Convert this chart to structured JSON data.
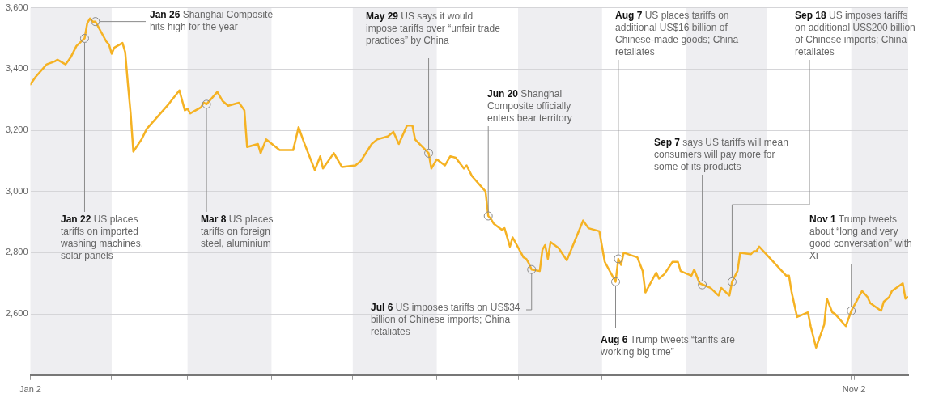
{
  "chart_data": {
    "type": "line",
    "x": [
      "--01-02",
      "--01-04",
      "--01-08",
      "--01-11",
      "--01-12",
      "--01-15",
      "--01-17",
      "--01-19",
      "--01-22",
      "--01-23",
      "--01-24",
      "--01-25",
      "--01-26",
      "--01-30",
      "--01-31",
      "--02-01",
      "--02-02",
      "--02-05",
      "--02-06",
      "--02-07",
      "--02-08",
      "--02-09",
      "--02-12",
      "--02-14",
      "--02-22",
      "--02-26",
      "--02-28",
      "--03-01",
      "--03-02",
      "--03-06",
      "--03-07",
      "--03-08",
      "--03-12",
      "--03-14",
      "--03-16",
      "--03-20",
      "--03-22",
      "--03-23",
      "--03-27",
      "--03-28",
      "--03-30",
      "--04-04",
      "--04-09",
      "--04-11",
      "--04-13",
      "--04-17",
      "--04-19",
      "--04-20",
      "--04-24",
      "--04-27",
      "--05-02",
      "--05-04",
      "--05-08",
      "--05-10",
      "--05-14",
      "--05-16",
      "--05-18",
      "--05-21",
      "--05-23",
      "--05-24",
      "--05-29",
      "--05-30",
      "--05-31",
      "--06-01",
      "--06-04",
      "--06-06",
      "--06-08",
      "--06-11",
      "--06-12",
      "--06-14",
      "--06-19",
      "--06-20",
      "--06-21",
      "--06-22",
      "--06-25",
      "--06-26",
      "--06-27",
      "--06-28",
      "--06-29",
      "--07-03",
      "--07-04",
      "--07-05",
      "--07-06",
      "--07-09",
      "--07-10",
      "--07-11",
      "--07-12",
      "--07-13",
      "--07-16",
      "--07-19",
      "--07-25",
      "--07-27",
      "--07-31",
      "--08-02",
      "--08-06",
      "--08-07",
      "--08-08",
      "--08-09",
      "--08-14",
      "--08-16",
      "--08-17",
      "--08-21",
      "--08-22",
      "--08-24",
      "--08-27",
      "--08-29",
      "--08-30",
      "--09-03",
      "--09-04",
      "--09-06",
      "--09-10",
      "--09-13",
      "--09-14",
      "--09-17",
      "--09-18",
      "--09-20",
      "--09-21",
      "--09-25",
      "--09-26",
      "--09-27",
      "--09-28",
      "--10-08",
      "--10-09",
      "--10-10",
      "--10-12",
      "--10-16",
      "--10-17",
      "--10-19",
      "--10-22",
      "--10-23",
      "--10-25",
      "--10-26",
      "--10-30",
      "--11-01",
      "--11-05",
      "--11-07",
      "--11-08",
      "--11-12",
      "--11-13",
      "--11-15",
      "--11-16",
      "--11-20",
      "--11-21",
      "--11-22"
    ],
    "values": [
      3350,
      3375,
      3415,
      3425,
      3430,
      3415,
      3440,
      3475,
      3500,
      3550,
      3565,
      3555,
      3555,
      3490,
      3480,
      3450,
      3470,
      3485,
      3455,
      3350,
      3255,
      3130,
      3170,
      3205,
      3285,
      3330,
      3265,
      3270,
      3255,
      3275,
      3290,
      3285,
      3325,
      3295,
      3280,
      3290,
      3265,
      3145,
      3155,
      3125,
      3170,
      3135,
      3135,
      3210,
      3160,
      3070,
      3115,
      3075,
      3125,
      3080,
      3085,
      3100,
      3155,
      3170,
      3180,
      3195,
      3155,
      3215,
      3215,
      3170,
      3125,
      3075,
      3090,
      3105,
      3085,
      3115,
      3110,
      3075,
      3085,
      3050,
      3000,
      2920,
      2910,
      2895,
      2875,
      2880,
      2850,
      2820,
      2850,
      2785,
      2780,
      2765,
      2745,
      2740,
      2810,
      2825,
      2780,
      2835,
      2815,
      2775,
      2905,
      2880,
      2870,
      2770,
      2705,
      2780,
      2760,
      2800,
      2785,
      2740,
      2670,
      2735,
      2715,
      2730,
      2770,
      2770,
      2740,
      2725,
      2745,
      2700,
      2685,
      2660,
      2685,
      2660,
      2705,
      2740,
      2800,
      2795,
      2805,
      2805,
      2820,
      2725,
      2725,
      2670,
      2590,
      2605,
      2560,
      2490,
      2565,
      2650,
      2605,
      2600,
      2560,
      2610,
      2675,
      2655,
      2635,
      2610,
      2640,
      2655,
      2675,
      2700,
      2650,
      2655
    ],
    "color": "#f5b223",
    "xlim": [
      "--01-02",
      "--11-22"
    ],
    "xticks": [
      {
        "value": "--01-02",
        "label": "Jan 2"
      },
      {
        "value": "--02-01",
        "label": null
      },
      {
        "value": "--03-01",
        "label": null
      },
      {
        "value": "--04-01",
        "label": null
      },
      {
        "value": "--05-01",
        "label": null
      },
      {
        "value": "--06-01",
        "label": null
      },
      {
        "value": "--07-01",
        "label": null
      },
      {
        "value": "--08-01",
        "label": null
      },
      {
        "value": "--09-01",
        "label": null
      },
      {
        "value": "--10-01",
        "label": null
      },
      {
        "value": "--11-01",
        "label": null
      },
      {
        "value": "--11-02",
        "label": "Nov 2"
      }
    ],
    "ylim": [
      2400,
      3600
    ],
    "yticks": [
      {
        "value": 2600,
        "label": "2,600"
      },
      {
        "value": 2800,
        "label": "2,800"
      },
      {
        "value": 3000,
        "label": "3,000"
      },
      {
        "value": 3200,
        "label": "3,200"
      },
      {
        "value": 3400,
        "label": "3,400"
      },
      {
        "value": 3600,
        "label": "3,600"
      }
    ],
    "grid": "y",
    "legend": false,
    "marker": "none",
    "line_style": "solid",
    "bands": [
      {
        "axis": "x",
        "from": "--01-02",
        "to": "--02-01",
        "color": "#eeeef1"
      },
      {
        "axis": "x",
        "from": "--03-01",
        "to": "--04-01",
        "color": "#eeeef1"
      },
      {
        "axis": "x",
        "from": "--05-01",
        "to": "--06-01",
        "color": "#eeeef1"
      },
      {
        "axis": "x",
        "from": "--07-01",
        "to": "--08-01",
        "color": "#eeeef1"
      },
      {
        "axis": "x",
        "from": "--09-01",
        "to": "--10-01",
        "color": "#eeeef1"
      },
      {
        "axis": "x",
        "from": "--11-01",
        "to": "--11-22",
        "color": "#eeeef1"
      }
    ],
    "annotations": [
      {
        "text": "Jan 22 US places tariffs on imported washing machines, solar panels",
        "x": "--01-22",
        "y": 3500
      },
      {
        "text": "Jan 26 Shanghai Composite hits high for the year",
        "x": "--01-26",
        "y": 3555
      },
      {
        "text": "Mar 8 US places tariffs on foreign steel, aluminium",
        "x": "--03-08",
        "y": 3285
      },
      {
        "text": "May 29 US says it would impose tariffs over “unfair trade practices” by China",
        "x": "--05-29",
        "y": 3125
      },
      {
        "text": "Jun 20 Shanghai Composite officially enters bear territory",
        "x": "--06-20",
        "y": 2920
      },
      {
        "text": "Jul 6 US imposes tariffs on US$34 billion of Chinese imports; China retaliates",
        "x": "--07-06",
        "y": 2745
      },
      {
        "text": "Aug 6 Trump tweets “tariffs are working big time”",
        "x": "--08-06",
        "y": 2705
      },
      {
        "text": "Aug 7 US places tariffs on additional US$16 billion of Chinese-made goods; China retaliates",
        "x": "--08-07",
        "y": 2780
      },
      {
        "text": "Sep 7 says US tariffs will mean consumers will pay more for some of its products",
        "x": "--09-07",
        "y": 2695
      },
      {
        "text": "Sep 18 US imposes tariffs on additional US$200 billion of Chinese imports; China retaliates",
        "x": "--09-18",
        "y": 2705
      },
      {
        "text": "Nov 1 Trump tweets about “long and very good conversation” with Xi",
        "x": "--11-01",
        "y": 2610
      }
    ]
  }
}
